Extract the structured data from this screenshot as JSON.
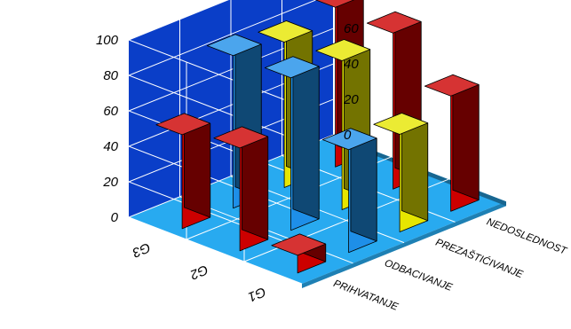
{
  "chart_data": {
    "type": "bar3d",
    "title": "",
    "xlabel": "",
    "ylabel": "",
    "ylim": [
      0,
      100
    ],
    "yticks": [
      "0",
      "20",
      "40",
      "60",
      "80",
      "100"
    ],
    "categories": [
      "PRIHVATANJE",
      "ODBACIVANJE",
      "PREZAŠTIĆIVANJE",
      "NEDOSLEDNOST"
    ],
    "series": [
      {
        "label": "G1",
        "values": [
          10,
          58,
          55,
          65
        ]
      },
      {
        "label": "G2",
        "values": [
          58,
          86,
          84,
          88
        ]
      },
      {
        "label": "G3",
        "values": [
          53,
          86,
          82,
          90
        ]
      }
    ],
    "colors": {
      "red": "#cc0000",
      "blue": "#1e8fe8",
      "yellow": "#e6e600",
      "wall": "#0a3ec8",
      "floor": "#28aaf0",
      "grid": "#ffffff"
    },
    "bar_colors": [
      [
        "red",
        "blue",
        "yellow",
        "red"
      ],
      [
        "red",
        "blue",
        "yellow",
        "red"
      ],
      [
        "red",
        "blue",
        "yellow",
        "red"
      ]
    ],
    "grid": true,
    "legend": "none"
  }
}
